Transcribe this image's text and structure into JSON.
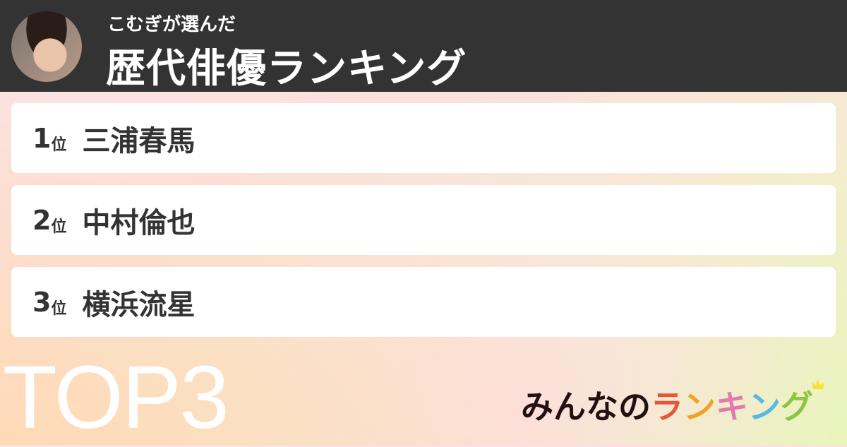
{
  "header": {
    "subtitle": "こむぎが選んだ",
    "title": "歴代俳優ランキング"
  },
  "ranking": [
    {
      "rank": "1",
      "unit": "位",
      "name": "三浦春馬"
    },
    {
      "rank": "2",
      "unit": "位",
      "name": "中村倫也"
    },
    {
      "rank": "3",
      "unit": "位",
      "name": "横浜流星"
    }
  ],
  "badge": "TOP3",
  "logo": {
    "text": "みんなのランキング",
    "parts": [
      "みんなの",
      "ラ",
      "ン",
      "キ",
      "ン",
      "グ"
    ],
    "colors": [
      "#231010",
      "#e5573a",
      "#eea321",
      "#e07bb0",
      "#58b9e0",
      "#8cc63f"
    ]
  }
}
